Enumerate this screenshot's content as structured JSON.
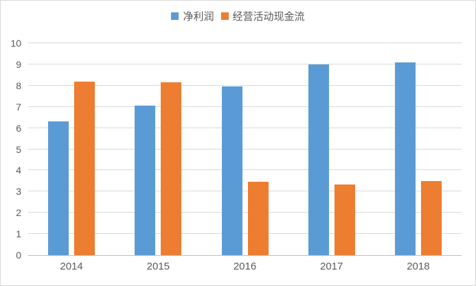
{
  "chart_data": {
    "type": "bar",
    "title": "",
    "xlabel": "",
    "ylabel": "",
    "categories": [
      "2014",
      "2015",
      "2016",
      "2017",
      "2018"
    ],
    "series": [
      {
        "name": "净利润",
        "color": "#5B9BD5",
        "values": [
          6.3,
          7.05,
          7.95,
          9.0,
          9.1
        ]
      },
      {
        "name": "经营活动现金流",
        "color": "#ED7D31",
        "values": [
          8.2,
          8.15,
          3.45,
          3.35,
          3.5
        ]
      }
    ],
    "ylim": [
      0,
      10
    ],
    "yticks": [
      0,
      1,
      2,
      3,
      4,
      5,
      6,
      7,
      8,
      9,
      10
    ],
    "grid": true,
    "legend_position": "top-center"
  },
  "colors": {
    "gridline": "#d9d9d9",
    "axis_line": "#bfbfbf",
    "tick_text": "#595959",
    "frame_border": "#d9d9d9",
    "background": "#ffffff"
  }
}
